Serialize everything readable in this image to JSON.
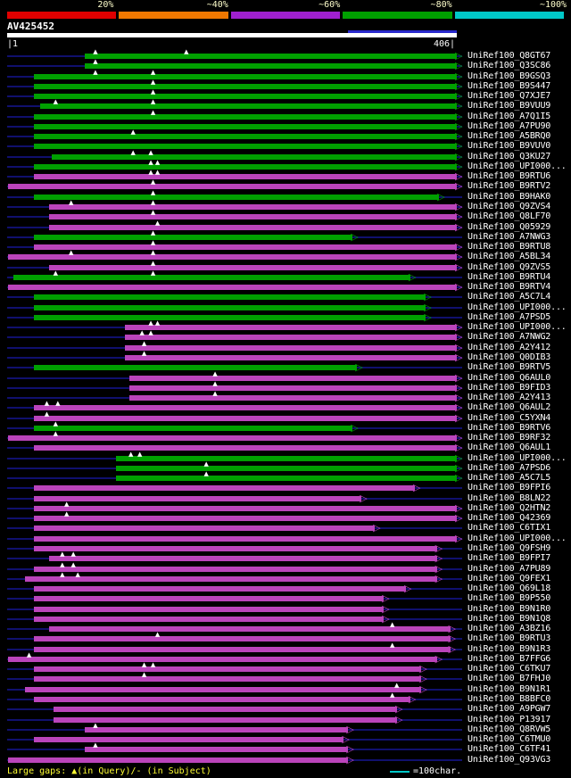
{
  "chart_data": {
    "type": "bar",
    "title": "AV425452",
    "query": {
      "name": "AV425452",
      "length": 406,
      "selection": {
        "start": 308,
        "end": 406
      }
    },
    "x_axis": {
      "start_label": "|1",
      "end_label": "406|",
      "min": 1,
      "max": 406
    },
    "color_key": [
      {
        "label": "20%",
        "color": "#e00000"
      },
      {
        "label": "~40%",
        "color": "#f07800"
      },
      {
        "label": "~60%",
        "color": "#a020d0"
      },
      {
        "label": "~80%",
        "color": "#00a000"
      },
      {
        "label": "~100%",
        "color": "#00c8c8"
      }
    ],
    "rows": [
      {
        "id": "UniRef100_Q8GT67",
        "color": "green",
        "start": 70,
        "end": 406,
        "gaps": [
          80,
          162
        ]
      },
      {
        "id": "UniRef100_Q3SC86",
        "color": "green",
        "start": 70,
        "end": 406,
        "gaps": [
          80
        ]
      },
      {
        "id": "UniRef100_B9GSQ3",
        "color": "green",
        "start": 24,
        "end": 406,
        "gaps": [
          80,
          132
        ]
      },
      {
        "id": "UniRef100_B9S447",
        "color": "green",
        "start": 24,
        "end": 406,
        "gaps": [
          132
        ]
      },
      {
        "id": "UniRef100_Q7XJE7",
        "color": "green",
        "start": 24,
        "end": 406,
        "gaps": [
          132
        ]
      },
      {
        "id": "UniRef100_B9VUU9",
        "color": "green",
        "start": 30,
        "end": 406,
        "gaps": [
          44,
          132
        ]
      },
      {
        "id": "UniRef100_A7Q1I5",
        "color": "green",
        "start": 24,
        "end": 406,
        "gaps": [
          132
        ]
      },
      {
        "id": "UniRef100_A7PU90",
        "color": "green",
        "start": 24,
        "end": 406,
        "gaps": []
      },
      {
        "id": "UniRef100_A5BRQ0",
        "color": "green",
        "start": 24,
        "end": 406,
        "gaps": [
          114
        ]
      },
      {
        "id": "UniRef100_B9VUV0",
        "color": "green",
        "start": 24,
        "end": 406,
        "gaps": []
      },
      {
        "id": "UniRef100_Q3KU27",
        "color": "green",
        "start": 40,
        "end": 406,
        "gaps": [
          114,
          130
        ]
      },
      {
        "id": "UniRef100_UPI000...",
        "color": "green",
        "start": 24,
        "end": 406,
        "gaps": [
          130,
          136
        ]
      },
      {
        "id": "UniRef100_B9RTU6",
        "color": "magenta",
        "start": 24,
        "end": 406,
        "gaps": [
          130,
          136
        ]
      },
      {
        "id": "UniRef100_B9RTV2",
        "color": "magenta",
        "start": 1,
        "end": 406,
        "gaps": [
          132
        ]
      },
      {
        "id": "UniRef100_B9HAK0",
        "color": "green",
        "start": 24,
        "end": 390,
        "gaps": [
          132
        ]
      },
      {
        "id": "UniRef100_Q9ZVS4",
        "color": "magenta",
        "start": 38,
        "end": 406,
        "gaps": [
          58,
          132
        ]
      },
      {
        "id": "UniRef100_Q8LF70",
        "color": "magenta",
        "start": 38,
        "end": 406,
        "gaps": [
          132
        ]
      },
      {
        "id": "UniRef100_Q05929",
        "color": "magenta",
        "start": 38,
        "end": 406,
        "gaps": [
          136
        ]
      },
      {
        "id": "UniRef100_A7NWG3",
        "color": "green",
        "start": 24,
        "end": 312,
        "gaps": [
          132
        ]
      },
      {
        "id": "UniRef100_B9RTU8",
        "color": "magenta",
        "start": 24,
        "end": 406,
        "gaps": [
          132
        ]
      },
      {
        "id": "UniRef100_A5BL34",
        "color": "magenta",
        "start": 1,
        "end": 406,
        "gaps": [
          58,
          132
        ]
      },
      {
        "id": "UniRef100_Q9ZVS5",
        "color": "magenta",
        "start": 38,
        "end": 406,
        "gaps": [
          132
        ]
      },
      {
        "id": "UniRef100_B9RTU4",
        "color": "green",
        "start": 6,
        "end": 364,
        "gaps": [
          44,
          132
        ]
      },
      {
        "id": "UniRef100_B9RTV4",
        "color": "magenta",
        "start": 1,
        "end": 406,
        "gaps": []
      },
      {
        "id": "UniRef100_A5C7L4",
        "color": "green",
        "start": 24,
        "end": 378,
        "gaps": []
      },
      {
        "id": "UniRef100_UPI000...",
        "color": "green",
        "start": 24,
        "end": 378,
        "gaps": []
      },
      {
        "id": "UniRef100_A7PSD5",
        "color": "green",
        "start": 24,
        "end": 378,
        "gaps": []
      },
      {
        "id": "UniRef100_UPI000...",
        "color": "magenta",
        "start": 106,
        "end": 406,
        "gaps": [
          130,
          136
        ]
      },
      {
        "id": "UniRef100_A7NWG2",
        "color": "magenta",
        "start": 106,
        "end": 406,
        "gaps": [
          122,
          130
        ]
      },
      {
        "id": "UniRef100_A2Y412",
        "color": "magenta",
        "start": 106,
        "end": 406,
        "gaps": [
          124
        ]
      },
      {
        "id": "UniRef100_Q0DIB3",
        "color": "magenta",
        "start": 106,
        "end": 406,
        "gaps": [
          124
        ]
      },
      {
        "id": "UniRef100_B9RTV5",
        "color": "green",
        "start": 24,
        "end": 316,
        "gaps": []
      },
      {
        "id": "UniRef100_Q6AUL0",
        "color": "magenta",
        "start": 110,
        "end": 406,
        "gaps": [
          188
        ]
      },
      {
        "id": "UniRef100_B9FID3",
        "color": "magenta",
        "start": 110,
        "end": 406,
        "gaps": [
          188
        ]
      },
      {
        "id": "UniRef100_A2Y413",
        "color": "magenta",
        "start": 110,
        "end": 406,
        "gaps": [
          188
        ]
      },
      {
        "id": "UniRef100_Q6AUL2",
        "color": "magenta",
        "start": 24,
        "end": 406,
        "gaps": [
          36,
          46
        ]
      },
      {
        "id": "UniRef100_C5YXN4",
        "color": "magenta",
        "start": 24,
        "end": 406,
        "gaps": [
          36
        ]
      },
      {
        "id": "UniRef100_B9RTV6",
        "color": "green",
        "start": 24,
        "end": 312,
        "gaps": [
          44
        ]
      },
      {
        "id": "UniRef100_B9RF32",
        "color": "magenta",
        "start": 1,
        "end": 406,
        "gaps": [
          44
        ]
      },
      {
        "id": "UniRef100_Q6AUL1",
        "color": "magenta",
        "start": 24,
        "end": 406,
        "gaps": []
      },
      {
        "id": "UniRef100_UPI000...",
        "color": "green",
        "start": 98,
        "end": 406,
        "gaps": [
          112,
          120
        ]
      },
      {
        "id": "UniRef100_A7PSD6",
        "color": "green",
        "start": 98,
        "end": 406,
        "gaps": [
          180
        ]
      },
      {
        "id": "UniRef100_A5C7L5",
        "color": "green",
        "start": 98,
        "end": 406,
        "gaps": [
          180
        ]
      },
      {
        "id": "UniRef100_B9FPI6",
        "color": "magenta",
        "start": 24,
        "end": 368,
        "gaps": []
      },
      {
        "id": "UniRef100_B8LN22",
        "color": "magenta",
        "start": 24,
        "end": 320,
        "gaps": []
      },
      {
        "id": "UniRef100_Q2HTN2",
        "color": "magenta",
        "start": 24,
        "end": 406,
        "gaps": [
          54
        ]
      },
      {
        "id": "UniRef100_Q42369",
        "color": "magenta",
        "start": 24,
        "end": 406,
        "gaps": [
          54
        ]
      },
      {
        "id": "UniRef100_C6TIX1",
        "color": "magenta",
        "start": 24,
        "end": 332,
        "gaps": []
      },
      {
        "id": "UniRef100_UPI000...",
        "color": "magenta",
        "start": 24,
        "end": 406,
        "gaps": []
      },
      {
        "id": "UniRef100_Q9FSH9",
        "color": "magenta",
        "start": 24,
        "end": 388,
        "gaps": []
      },
      {
        "id": "UniRef100_B9FPI7",
        "color": "magenta",
        "start": 38,
        "end": 388,
        "gaps": [
          50,
          60
        ]
      },
      {
        "id": "UniRef100_A7PU89",
        "color": "magenta",
        "start": 24,
        "end": 388,
        "gaps": [
          50,
          60
        ]
      },
      {
        "id": "UniRef100_Q9FEX1",
        "color": "magenta",
        "start": 16,
        "end": 388,
        "gaps": [
          50,
          64
        ]
      },
      {
        "id": "UniRef100_Q69L18",
        "color": "magenta",
        "start": 24,
        "end": 360,
        "gaps": []
      },
      {
        "id": "UniRef100_B9P550",
        "color": "magenta",
        "start": 24,
        "end": 340,
        "gaps": []
      },
      {
        "id": "UniRef100_B9N1R0",
        "color": "magenta",
        "start": 24,
        "end": 340,
        "gaps": []
      },
      {
        "id": "UniRef100_B9N1Q8",
        "color": "magenta",
        "start": 24,
        "end": 340,
        "gaps": []
      },
      {
        "id": "UniRef100_A3BZ16",
        "color": "magenta",
        "start": 38,
        "end": 400,
        "gaps": [
          348
        ]
      },
      {
        "id": "UniRef100_B9RTU3",
        "color": "magenta",
        "start": 24,
        "end": 400,
        "gaps": [
          136
        ]
      },
      {
        "id": "UniRef100_B9N1R3",
        "color": "magenta",
        "start": 24,
        "end": 400,
        "gaps": [
          348
        ]
      },
      {
        "id": "UniRef100_B7FFG6",
        "color": "magenta",
        "start": 1,
        "end": 388,
        "gaps": [
          20
        ]
      },
      {
        "id": "UniRef100_C6TKU7",
        "color": "magenta",
        "start": 24,
        "end": 374,
        "gaps": [
          124,
          132
        ]
      },
      {
        "id": "UniRef100_B7FHJ0",
        "color": "magenta",
        "start": 24,
        "end": 374,
        "gaps": [
          124
        ]
      },
      {
        "id": "UniRef100_B9N1R1",
        "color": "magenta",
        "start": 16,
        "end": 374,
        "gaps": [
          352
        ]
      },
      {
        "id": "UniRef100_B8BFC0",
        "color": "magenta",
        "start": 24,
        "end": 364,
        "gaps": [
          348
        ]
      },
      {
        "id": "UniRef100_A9PGW7",
        "color": "magenta",
        "start": 42,
        "end": 352,
        "gaps": []
      },
      {
        "id": "UniRef100_P13917",
        "color": "magenta",
        "start": 42,
        "end": 352,
        "gaps": []
      },
      {
        "id": "UniRef100_Q8RVW5",
        "color": "magenta",
        "start": 70,
        "end": 308,
        "gaps": [
          80
        ]
      },
      {
        "id": "UniRef100_C6TMU0",
        "color": "magenta",
        "start": 24,
        "end": 304,
        "gaps": []
      },
      {
        "id": "UniRef100_C6TF41",
        "color": "magenta",
        "start": 70,
        "end": 308,
        "gaps": [
          80
        ]
      },
      {
        "id": "UniRef100_Q93VG3",
        "color": "magenta",
        "start": 1,
        "end": 308,
        "gaps": []
      }
    ]
  },
  "colors": {
    "green": "#00a000",
    "magenta": "#bb44bb",
    "subject_line": "#10106e",
    "selection": "#2828cc",
    "background": "#000000",
    "label_text": "#ffffff",
    "scale_label_text": "#ffffcc",
    "footer_text": "#ffff33"
  },
  "glyphs": {
    "arrow": "▷",
    "gap": "▲"
  },
  "footer": {
    "gaps_legend": "Large gaps: ▲(in Query)/- (in Subject)",
    "scale_legend": "=100char.",
    "scale_line_color": "#00c8c8"
  }
}
